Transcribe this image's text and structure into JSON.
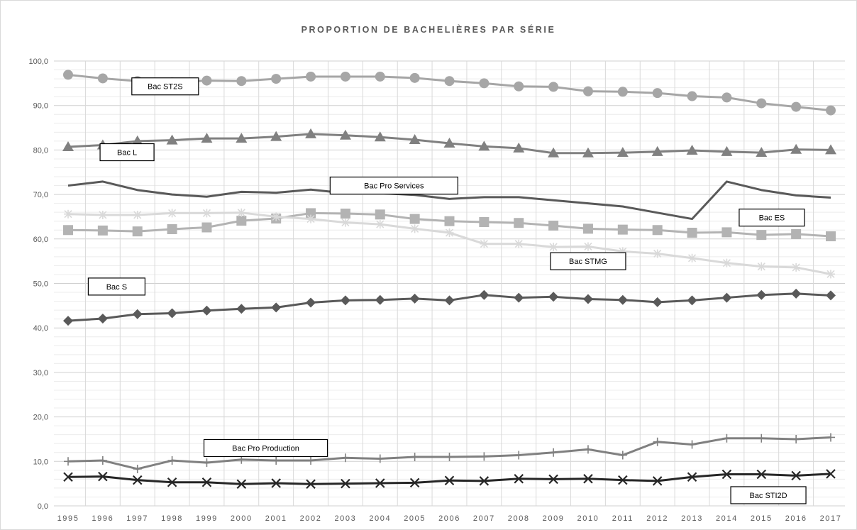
{
  "chart_data": {
    "type": "line",
    "title": "PROPORTION DE BACHELIÈRES PAR SÉRIE",
    "xlabel": "",
    "ylabel": "",
    "ylim": [
      0,
      100
    ],
    "grid": true,
    "legend": "none (callout labels)",
    "y_tick_labels": [
      "0,0",
      "10,0",
      "20,0",
      "30,0",
      "40,0",
      "50,0",
      "60,0",
      "70,0",
      "80,0",
      "90,0",
      "100,0"
    ],
    "x": [
      1995,
      1996,
      1997,
      1998,
      1999,
      2000,
      2001,
      2002,
      2003,
      2004,
      2005,
      2006,
      2007,
      2008,
      2009,
      2010,
      2011,
      2012,
      2013,
      2014,
      2015,
      2016,
      2017
    ],
    "x_tick_labels": [
      "1995",
      "1996",
      "1997",
      "1998",
      "1999",
      "2000",
      "2001",
      "2002",
      "2003",
      "2004",
      "2005",
      "2006",
      "2007",
      "2008",
      "2009",
      "2010",
      "2011",
      "2012",
      "2013",
      "2014",
      "2015",
      "2016",
      "2017"
    ],
    "series": [
      {
        "name": "Bac ST2S",
        "color": "#a6a6a6",
        "marker": "circle",
        "values": [
          96.9,
          96.1,
          95.5,
          95.2,
          95.6,
          95.5,
          96.0,
          96.5,
          96.5,
          96.5,
          96.2,
          95.5,
          95.0,
          94.3,
          94.2,
          93.2,
          93.1,
          92.8,
          92.1,
          91.8,
          90.5,
          89.7,
          88.9
        ]
      },
      {
        "name": "Bac L",
        "color": "#808080",
        "marker": "triangle",
        "values": [
          80.7,
          81.1,
          82.0,
          82.2,
          82.6,
          82.6,
          83.0,
          83.6,
          83.3,
          82.9,
          82.3,
          81.5,
          80.8,
          80.4,
          79.3,
          79.3,
          79.4,
          79.6,
          79.9,
          79.6,
          79.4,
          80.1,
          80.0
        ]
      },
      {
        "name": "Bac Pro Services",
        "color": "#595959",
        "marker": "none",
        "values": [
          72.0,
          72.9,
          71.0,
          70.0,
          69.5,
          70.6,
          70.4,
          71.1,
          70.3,
          70.3,
          69.9,
          69.0,
          69.4,
          69.4,
          68.7,
          68.0,
          67.3,
          65.9,
          64.5,
          72.9,
          71.0,
          69.8,
          69.3
        ]
      },
      {
        "name": "Bac ES",
        "color": "#b3b3b3",
        "marker": "square",
        "values": [
          62.0,
          61.9,
          61.7,
          62.2,
          62.6,
          64.1,
          64.6,
          65.8,
          65.7,
          65.5,
          64.5,
          64.0,
          63.8,
          63.6,
          63.0,
          62.3,
          62.1,
          62.0,
          61.4,
          61.5,
          60.9,
          61.1,
          60.6
        ]
      },
      {
        "name": "Bac STMG",
        "color": "#d9d9d9",
        "marker": "star",
        "values": [
          65.6,
          65.4,
          65.4,
          65.8,
          65.8,
          65.9,
          65.0,
          64.5,
          63.7,
          63.3,
          62.3,
          61.4,
          58.9,
          58.9,
          58.2,
          58.3,
          57.2,
          56.7,
          55.7,
          54.6,
          53.8,
          53.6,
          52.1
        ]
      },
      {
        "name": "Bac S",
        "color": "#595959",
        "marker": "diamond",
        "values": [
          41.6,
          42.1,
          43.1,
          43.3,
          43.9,
          44.3,
          44.6,
          45.7,
          46.2,
          46.3,
          46.6,
          46.2,
          47.4,
          46.8,
          47.0,
          46.5,
          46.3,
          45.8,
          46.2,
          46.8,
          47.4,
          47.7,
          47.3
        ]
      },
      {
        "name": "Bac Pro Production",
        "color": "#808080",
        "marker": "plus",
        "values": [
          10.0,
          10.2,
          8.3,
          10.2,
          9.7,
          10.4,
          10.2,
          10.2,
          10.8,
          10.6,
          11.0,
          11.0,
          11.1,
          11.4,
          12.0,
          12.7,
          11.4,
          14.4,
          13.8,
          15.2,
          15.2,
          15.0,
          15.4
        ]
      },
      {
        "name": "Bac STI2D",
        "color": "#262626",
        "marker": "x",
        "values": [
          6.5,
          6.6,
          5.8,
          5.3,
          5.3,
          4.9,
          5.1,
          4.9,
          5.0,
          5.1,
          5.2,
          5.7,
          5.6,
          6.1,
          6.0,
          6.1,
          5.8,
          5.6,
          6.5,
          7.1,
          7.1,
          6.8,
          7.2
        ]
      }
    ]
  }
}
